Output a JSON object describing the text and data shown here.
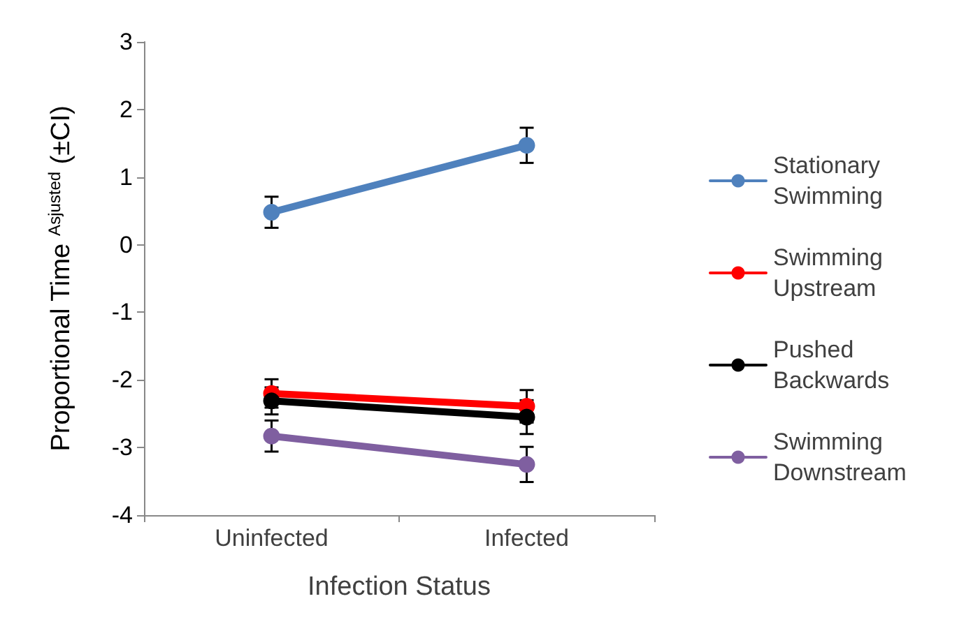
{
  "chart_data": {
    "type": "line",
    "xlabel": "Infection Status",
    "ylabel": "Proportional Time $^{Asjusted}$ (±CI)",
    "categories": [
      "Uninfected",
      "Infected"
    ],
    "series": [
      {
        "name": "Stationary Swimming",
        "color": "#4f81bd",
        "values": [
          0.48,
          1.47
        ],
        "errors": [
          0.23,
          0.26
        ]
      },
      {
        "name": "Swimming Upstream",
        "color": "#ff0000",
        "values": [
          -2.2,
          -2.39
        ],
        "errors": [
          0.21,
          0.24
        ]
      },
      {
        "name": "Pushed Backwards",
        "color": "#000000",
        "values": [
          -2.31,
          -2.55
        ],
        "errors": [
          0.2,
          0.25
        ]
      },
      {
        "name": "Swimming Downstream",
        "color": "#7f5fa0",
        "values": [
          -2.83,
          -3.25
        ],
        "errors": [
          0.23,
          0.26
        ]
      }
    ],
    "ylim": [
      -4,
      3
    ],
    "yticks": [
      -4,
      -3,
      -2,
      -1,
      0,
      1,
      2,
      3
    ],
    "grid": false,
    "legend": "right",
    "marker": "circle",
    "line_style": "solid"
  }
}
